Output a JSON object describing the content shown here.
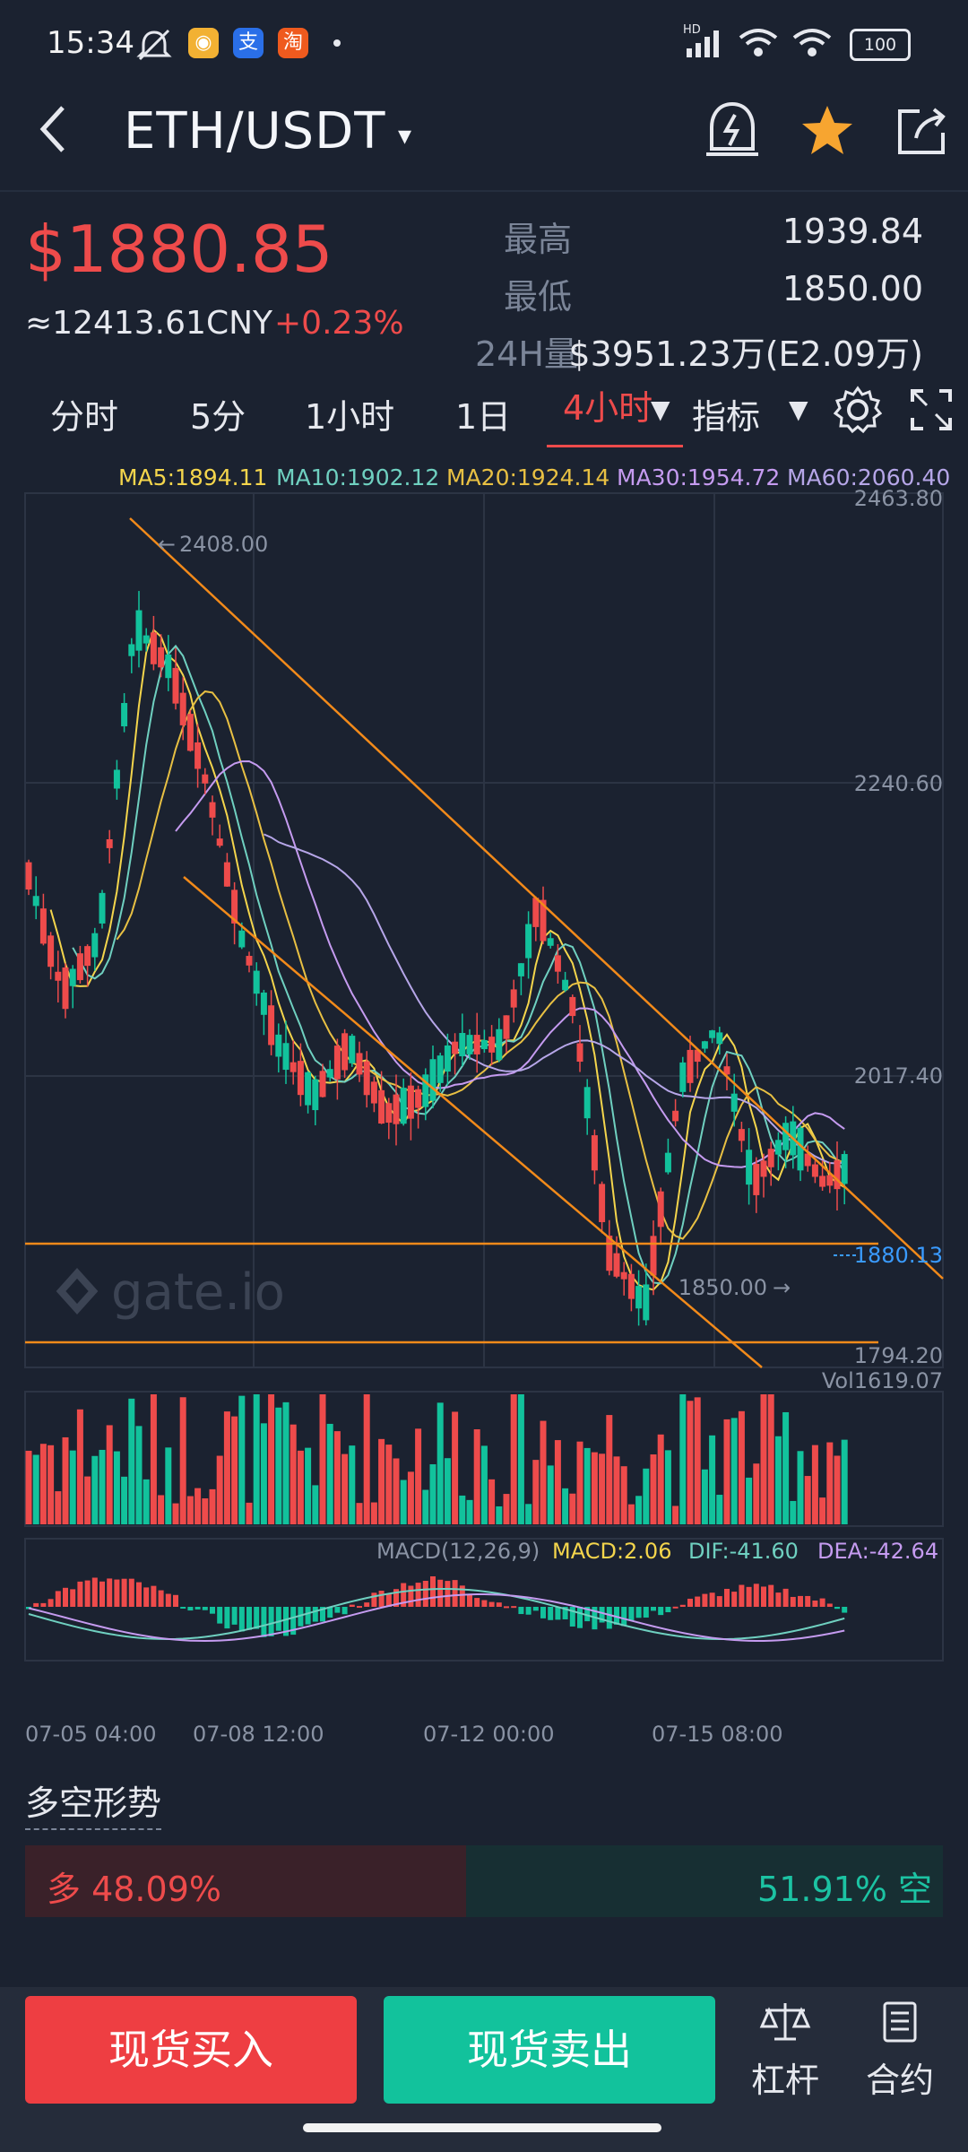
{
  "status_bar": {
    "time": "15:34",
    "battery": "100",
    "hd_label": "HD"
  },
  "header": {
    "title": "ETH/USDT",
    "icons": [
      "back-icon",
      "price-alert-icon",
      "star-icon",
      "share-icon"
    ]
  },
  "ticker": {
    "price": "$1880.85",
    "cny": "≈12413.61CNY",
    "change": "+0.23%",
    "high_label": "最高",
    "high": "1939.84",
    "low_label": "最低",
    "low": "1850.00",
    "vol_label": "24H量",
    "vol": "$3951.23万(E2.09万)"
  },
  "tabs": {
    "items": [
      "分时",
      "5分",
      "1小时",
      "1日",
      "4小时"
    ],
    "active": "4小时",
    "indicator": "指标"
  },
  "ma_legend": {
    "ma5": "MA5:1894.11",
    "ma10": "MA10:1902.12",
    "ma20": "MA20:1924.14",
    "ma30": "MA30:1954.72",
    "ma60": "MA60:2060.40"
  },
  "colors": {
    "up": "#ee4b4b",
    "down": "#12c29c",
    "ma5": "#f4d54c",
    "ma10": "#6fd0c0",
    "ma20": "#e8c043",
    "ma30": "#c59bf0",
    "ma60": "#b6a6e8",
    "trend": "#f28a1a",
    "current": "#3a9bff"
  },
  "chart": {
    "y_labels": [
      "2463.80",
      "2240.60",
      "2017.40",
      "1794.20"
    ],
    "high_marker": "2408.00",
    "low_marker": "1850.00",
    "current_label": "1880.13",
    "watermark": "gate.io",
    "vol_label": "Vol1619.07",
    "macd_label": "MACD(12,26,9)",
    "macd_value": "MACD:2.06",
    "dif": "DIF:-41.60",
    "dea": "DEA:-42.64",
    "x_labels": [
      "07-05 04:00",
      "07-08 12:00",
      "07-12 00:00",
      "07-15 08:00"
    ]
  },
  "long_short": {
    "title": "多空形势",
    "long": "多 48.09%",
    "short": "51.91% 空",
    "long_fraction": 0.4809
  },
  "bottom": {
    "buy": "现货买入",
    "sell": "现货卖出",
    "leverage": "杠杆",
    "contract": "合约"
  }
}
